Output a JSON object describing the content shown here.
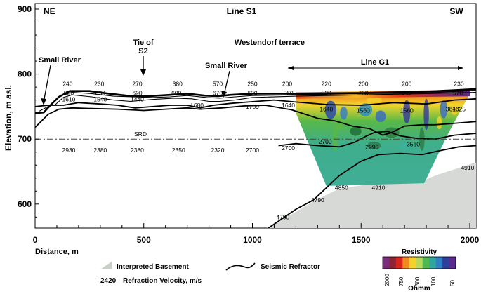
{
  "figure": {
    "title": "Line S1",
    "corner_left": "NE",
    "corner_right": "SW",
    "y_axis_label": "Elevation, m asl.",
    "x_axis_label": "Distance, m",
    "x_ticks": [
      "0",
      "500",
      "1000",
      "1500",
      "2000"
    ],
    "y_ticks": [
      "900",
      "800",
      "700",
      "600"
    ],
    "x_range": [
      0,
      2030
    ],
    "y_range": [
      560,
      910
    ]
  },
  "annotations": {
    "small_river_left": "Small River",
    "tie_line1": "Tie of",
    "tie_line2": "S2",
    "small_river_mid": "Small River",
    "terrace": "Westendorf terrace",
    "line_g1": "Line G1",
    "srd": "SRD"
  },
  "velocities": {
    "row1": [
      {
        "d": 150,
        "t": "240"
      },
      {
        "d": 295,
        "t": "230"
      },
      {
        "d": 470,
        "t": "270"
      },
      {
        "d": 655,
        "t": "380"
      },
      {
        "d": 840,
        "t": "570"
      },
      {
        "d": 1000,
        "t": "250"
      },
      {
        "d": 1160,
        "t": "200"
      },
      {
        "d": 1340,
        "t": "220"
      },
      {
        "d": 1510,
        "t": "200"
      },
      {
        "d": 1710,
        "t": "200"
      },
      {
        "d": 1950,
        "t": "230"
      }
    ],
    "row2": [
      {
        "d": 155,
        "t": "900"
      },
      {
        "d": 300,
        "t": "830"
      },
      {
        "d": 470,
        "t": "690"
      },
      {
        "d": 650,
        "t": "600"
      },
      {
        "d": 840,
        "t": "670"
      },
      {
        "d": 1000,
        "t": "600"
      },
      {
        "d": 1165,
        "t": "560"
      },
      {
        "d": 1340,
        "t": "520"
      },
      {
        "d": 1510,
        "t": "730"
      },
      {
        "d": 1710,
        "t": "810"
      },
      {
        "d": 1945,
        "t": "570"
      }
    ],
    "row3": [
      {
        "d": 155,
        "t": "1610"
      },
      {
        "d": 300,
        "t": "1540"
      },
      {
        "d": 470,
        "t": "1440"
      },
      {
        "d": 745,
        "t": "1680"
      },
      {
        "d": 1000,
        "t": "1709"
      },
      {
        "d": 1165,
        "t": "1640"
      },
      {
        "d": 1340,
        "t": "1640"
      },
      {
        "d": 1510,
        "t": "1560"
      },
      {
        "d": 1710,
        "t": "1560"
      },
      {
        "d": 1950,
        "t": "1625"
      }
    ],
    "row4": [
      {
        "d": 1920,
        "t": "3640"
      },
      {
        "d": 1740,
        "t": "3560"
      },
      {
        "d": 1550,
        "t": "2990"
      },
      {
        "d": 1335,
        "t": "2700"
      }
    ],
    "row5": [
      {
        "d": 155,
        "t": "2930"
      },
      {
        "d": 300,
        "t": "2380"
      },
      {
        "d": 470,
        "t": "2380"
      },
      {
        "d": 660,
        "t": "2350"
      },
      {
        "d": 840,
        "t": "2320"
      },
      {
        "d": 1000,
        "t": "2700"
      },
      {
        "d": 1165,
        "t": "2700"
      }
    ],
    "row6": [
      {
        "d": 1410,
        "t": "4850"
      },
      {
        "d": 1580,
        "t": "4910"
      },
      {
        "d": 1990,
        "t": "4910"
      },
      {
        "d": 1300,
        "t": "4790"
      },
      {
        "d": 1140,
        "t": "4790"
      }
    ]
  },
  "legend": {
    "basement": "Interpreted Basement",
    "velocity_sample": "2420",
    "velocity": "Refraction Velocity, m/s",
    "refractor": "Seismic Refractor",
    "resistivity_title": "Resistivity",
    "resistivity_unit": "Ohmm",
    "resistivity_ticks": [
      "2000",
      "750",
      "300",
      "100",
      "50"
    ],
    "resistivity_colors": [
      "#7b2d7e",
      "#8c2434",
      "#d9261c",
      "#f08a1e",
      "#f5d22a",
      "#b7d85a",
      "#4fb84f",
      "#2fa6a0",
      "#2e7fc4",
      "#2c3f9a",
      "#5a2a8c"
    ]
  }
}
